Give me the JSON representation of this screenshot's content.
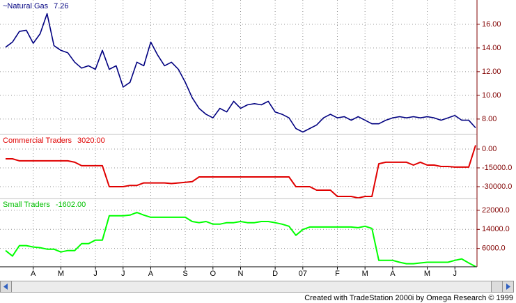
{
  "chart_data": [
    {
      "type": "line",
      "series": [
        {
          "name": "~Natural Gas",
          "color": "#000080",
          "values": [
            14.06,
            14.5,
            15.4,
            15.5,
            14.4,
            15.2,
            16.9,
            14.2,
            13.8,
            13.6,
            12.8,
            12.3,
            12.5,
            12.2,
            13.8,
            12.2,
            12.5,
            10.7,
            11.1,
            12.8,
            12.5,
            14.5,
            13.4,
            12.5,
            12.8,
            12.2,
            11.1,
            9.8,
            8.9,
            8.4,
            8.1,
            8.9,
            8.6,
            9.5,
            8.9,
            9.2,
            9.3,
            9.2,
            9.5,
            8.6,
            8.4,
            8.1,
            7.2,
            6.9,
            7.2,
            7.5,
            8.1,
            8.4,
            8.1,
            8.2,
            7.9,
            8.2,
            7.9,
            7.6,
            7.6,
            7.9,
            8.1,
            8.2,
            8.1,
            8.2,
            8.1,
            8.2,
            8.1,
            7.9,
            8.1,
            8.3,
            7.9,
            7.9,
            7.26
          ]
        }
      ],
      "ylim": [
        6.7,
        18.05
      ],
      "yticks": [
        {
          "value": 8,
          "label": "8.00"
        },
        {
          "value": 10,
          "label": "10.00"
        },
        {
          "value": 12,
          "label": "12.00"
        },
        {
          "value": 14,
          "label": "14.00"
        },
        {
          "value": 16,
          "label": "16.00"
        }
      ],
      "grid": true
    },
    {
      "type": "line",
      "series": [
        {
          "name": "Commercial Traders",
          "color": "#e00000",
          "values": [
            -7800,
            -7800,
            -9400,
            -9400,
            -9400,
            -9400,
            -9400,
            -9400,
            -9400,
            -9400,
            -10500,
            -13300,
            -13300,
            -13300,
            -13300,
            -30000,
            -30000,
            -30000,
            -29000,
            -29000,
            -27000,
            -27000,
            -27000,
            -27000,
            -27500,
            -27000,
            -26500,
            -26000,
            -22200,
            -22200,
            -22200,
            -22200,
            -22200,
            -22200,
            -22200,
            -22200,
            -22200,
            -22200,
            -22200,
            -22200,
            -22200,
            -22200,
            -30000,
            -30000,
            -30000,
            -32800,
            -32800,
            -32800,
            -37800,
            -37800,
            -37800,
            -39000,
            -37800,
            -37800,
            -11700,
            -10500,
            -10500,
            -10500,
            -10500,
            -12800,
            -10500,
            -12800,
            -12800,
            -13900,
            -13900,
            -14400,
            -14400,
            -14400,
            3020
          ],
          "value_labels": [
            null,
            null,
            null,
            null,
            null,
            null,
            null,
            null,
            null,
            null,
            null,
            null,
            null,
            null,
            null,
            null,
            null,
            null,
            null,
            null,
            null,
            null,
            null,
            null,
            null,
            null,
            null,
            null,
            null,
            null,
            null,
            null,
            null,
            null,
            null,
            null,
            null,
            null,
            null,
            null,
            null,
            null,
            null,
            null,
            null,
            null,
            null,
            null,
            null,
            null,
            null,
            null,
            null,
            null,
            null,
            null,
            null,
            null,
            null,
            null,
            null,
            null,
            null,
            null,
            null,
            null,
            null,
            null,
            "3020.00"
          ]
        }
      ],
      "ylim": [
        -39444,
        11667
      ],
      "yticks": [
        {
          "value": 0,
          "label": "0.00"
        },
        {
          "value": -15000,
          "label": "-15000.0"
        },
        {
          "value": -30000,
          "label": "-30000.0"
        }
      ],
      "grid": true
    },
    {
      "type": "line",
      "categories": [
        null,
        null,
        null,
        null,
        "A",
        null,
        null,
        null,
        "M",
        null,
        null,
        null,
        null,
        "J",
        null,
        null,
        null,
        "J",
        null,
        null,
        null,
        "A",
        null,
        null,
        null,
        null,
        "S",
        null,
        null,
        null,
        "O",
        null,
        null,
        null,
        "N",
        null,
        null,
        null,
        null,
        "D",
        null,
        null,
        null,
        "07",
        null,
        null,
        null,
        null,
        "F",
        null,
        null,
        null,
        "M",
        null,
        null,
        null,
        "A",
        null,
        null,
        null,
        null,
        "M",
        null,
        null,
        null,
        "J",
        null,
        null,
        null
      ],
      "series": [
        {
          "name": "Small Traders",
          "color": "#00ff00",
          "values": [
            5100,
            2800,
            7200,
            7200,
            6600,
            6300,
            5700,
            5700,
            4500,
            5100,
            5100,
            8000,
            8000,
            9500,
            9500,
            19700,
            19700,
            19700,
            20000,
            21100,
            20000,
            19100,
            19100,
            19100,
            19100,
            19100,
            19100,
            17300,
            16800,
            17300,
            16200,
            16200,
            16800,
            16800,
            17300,
            16800,
            16800,
            17300,
            17300,
            16800,
            16200,
            15300,
            11500,
            13900,
            15000,
            15000,
            15000,
            15000,
            15000,
            15000,
            15000,
            14700,
            15300,
            14400,
            1000,
            1000,
            1000,
            200,
            -400,
            -400,
            -100,
            200,
            200,
            200,
            200,
            1000,
            1600,
            -100,
            -1602
          ],
          "value_labels": [
            null,
            null,
            null,
            null,
            null,
            null,
            null,
            null,
            null,
            null,
            null,
            null,
            null,
            null,
            null,
            null,
            null,
            null,
            null,
            null,
            null,
            null,
            null,
            null,
            null,
            null,
            null,
            null,
            null,
            null,
            null,
            null,
            null,
            null,
            null,
            null,
            null,
            null,
            null,
            null,
            null,
            null,
            null,
            null,
            null,
            null,
            null,
            null,
            null,
            null,
            null,
            null,
            null,
            null,
            null,
            null,
            null,
            null,
            null,
            null,
            null,
            null,
            null,
            null,
            null,
            null,
            null,
            null,
            "-1602.00"
          ]
        }
      ],
      "ylim": [
        -1700,
        26950
      ],
      "yticks": [
        {
          "value": 6000,
          "label": "6000.0"
        },
        {
          "value": 14000,
          "label": "14000.0"
        },
        {
          "value": 22000,
          "label": "22000.0"
        }
      ],
      "grid": true
    }
  ],
  "footer": "Created with TradeStation 2000i by Omega Research © 1999"
}
